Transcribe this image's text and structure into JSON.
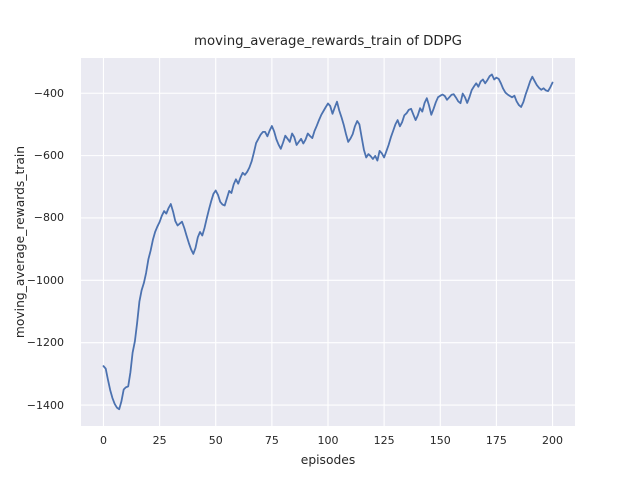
{
  "figure": {
    "background_color": "#ffffff",
    "panel_background_color": "#eaeaf2",
    "grid_color": "#ffffff",
    "text_color": "#262626"
  },
  "chart_data": {
    "type": "line",
    "title": "moving_average_rewards_train of DDPG",
    "xlabel": "episodes",
    "ylabel": "moving_average_rewards_train",
    "grid": true,
    "legend": false,
    "xlim": [
      -10,
      210
    ],
    "ylim": [
      -1467,
      -287
    ],
    "x_ticks": [
      0,
      25,
      50,
      75,
      100,
      125,
      150,
      175,
      200
    ],
    "x_tick_labels": [
      "0",
      "25",
      "50",
      "75",
      "100",
      "125",
      "150",
      "175",
      "200"
    ],
    "y_ticks": [
      -400,
      -600,
      -800,
      -1000,
      -1200,
      -1400
    ],
    "y_tick_labels": [
      "−400",
      "−600",
      "−800",
      "−1000",
      "−1200",
      "−1400"
    ],
    "series": [
      {
        "name": "moving_average_rewards_train",
        "color": "#4c72b0",
        "x_start": 0,
        "x_step": 1,
        "values": [
          -1275,
          -1283,
          -1318,
          -1352,
          -1377,
          -1396,
          -1408,
          -1413,
          -1388,
          -1350,
          -1343,
          -1340,
          -1295,
          -1232,
          -1195,
          -1137,
          -1068,
          -1032,
          -1008,
          -976,
          -932,
          -905,
          -870,
          -845,
          -828,
          -813,
          -793,
          -778,
          -786,
          -768,
          -755,
          -780,
          -810,
          -824,
          -818,
          -812,
          -832,
          -856,
          -880,
          -900,
          -915,
          -896,
          -862,
          -845,
          -856,
          -832,
          -802,
          -772,
          -746,
          -722,
          -712,
          -726,
          -748,
          -757,
          -760,
          -736,
          -713,
          -720,
          -692,
          -676,
          -690,
          -671,
          -655,
          -662,
          -652,
          -638,
          -618,
          -590,
          -560,
          -546,
          -533,
          -524,
          -524,
          -538,
          -520,
          -505,
          -522,
          -548,
          -565,
          -578,
          -558,
          -536,
          -546,
          -556,
          -529,
          -541,
          -566,
          -556,
          -546,
          -561,
          -549,
          -529,
          -537,
          -544,
          -521,
          -504,
          -486,
          -469,
          -457,
          -444,
          -433,
          -441,
          -466,
          -446,
          -427,
          -455,
          -477,
          -501,
          -531,
          -556,
          -545,
          -531,
          -506,
          -489,
          -500,
          -542,
          -581,
          -606,
          -595,
          -602,
          -611,
          -601,
          -616,
          -585,
          -593,
          -606,
          -586,
          -566,
          -541,
          -521,
          -500,
          -486,
          -506,
          -493,
          -471,
          -464,
          -453,
          -450,
          -468,
          -486,
          -471,
          -448,
          -459,
          -431,
          -416,
          -439,
          -469,
          -451,
          -429,
          -413,
          -408,
          -404,
          -409,
          -421,
          -413,
          -405,
          -403,
          -414,
          -426,
          -432,
          -401,
          -413,
          -431,
          -412,
          -390,
          -378,
          -368,
          -379,
          -362,
          -356,
          -368,
          -358,
          -345,
          -340,
          -356,
          -350,
          -354,
          -368,
          -385,
          -398,
          -404,
          -409,
          -413,
          -408,
          -426,
          -438,
          -444,
          -428,
          -404,
          -384,
          -362,
          -347,
          -361,
          -374,
          -383,
          -389,
          -384,
          -391,
          -393,
          -381,
          -366
        ]
      }
    ]
  }
}
